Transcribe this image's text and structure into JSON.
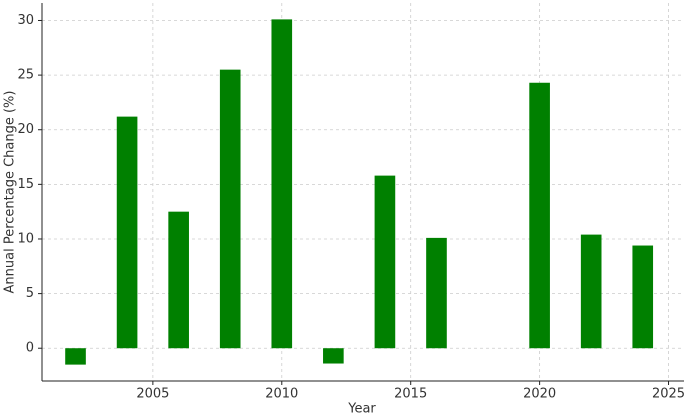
{
  "chart_data": {
    "type": "bar",
    "xlabel": "Year",
    "ylabel": "Annual Percentage Change (%)",
    "x": [
      2002,
      2004,
      2006,
      2008,
      2010,
      2012,
      2014,
      2016,
      2020,
      2022,
      2024
    ],
    "values": [
      -1.5,
      21.2,
      12.5,
      25.5,
      30.1,
      -1.4,
      15.8,
      10.1,
      24.3,
      10.4,
      9.4
    ],
    "color": "#008000",
    "xlim": [
      2000.7,
      2025.6
    ],
    "xticks": [
      2005,
      2010,
      2015,
      2020,
      2025
    ],
    "ylim": [
      -3.0,
      31.6
    ],
    "yticks": [
      0,
      5,
      10,
      15,
      20,
      25,
      30
    ],
    "grid": true
  }
}
